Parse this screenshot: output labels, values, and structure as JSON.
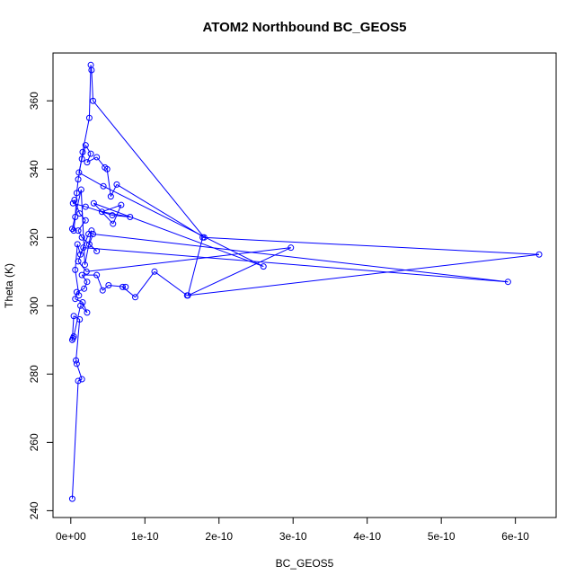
{
  "chart_data": {
    "type": "line",
    "title": "ATOM2 Northbound BC_GEOS5",
    "xlabel": "BC_GEOS5",
    "ylabel": "Theta (K)",
    "xlim": [
      -2.4e-11,
      6.55e-10
    ],
    "ylim": [
      238,
      374
    ],
    "x_ticks": [
      0,
      1e-10,
      2e-10,
      3e-10,
      4e-10,
      5e-10,
      6e-10
    ],
    "x_tick_labels": [
      "0e+00",
      "1e-10",
      "2e-10",
      "3e-10",
      "4e-10",
      "5e-10",
      "6e-10"
    ],
    "y_ticks": [
      240,
      260,
      280,
      300,
      320,
      340,
      360
    ],
    "y_tick_labels": [
      "240",
      "260",
      "280",
      "300",
      "320",
      "340",
      "360"
    ],
    "grid": false,
    "series": [
      {
        "color": "#0000ff",
        "marker": "open-circle",
        "points": [
          [
            2e-12,
            243.5
          ],
          [
            1e-11,
            278
          ],
          [
            1.5e-11,
            278.5
          ],
          [
            8e-12,
            283
          ],
          [
            7e-12,
            284
          ],
          [
            1.2e-11,
            296
          ],
          [
            4e-12,
            297
          ],
          [
            2e-12,
            290
          ],
          [
            3e-12,
            290.5
          ],
          [
            4e-12,
            291
          ],
          [
            1.3e-11,
            300
          ],
          [
            2.2e-11,
            298
          ],
          [
            1.6e-11,
            301
          ],
          [
            6e-12,
            302
          ],
          [
            8e-12,
            304
          ],
          [
            1.8e-11,
            305
          ],
          [
            2.2e-11,
            307
          ],
          [
            1.5e-11,
            309
          ],
          [
            3.5e-11,
            309
          ],
          [
            4.3e-11,
            304.5
          ],
          [
            5.1e-11,
            306
          ],
          [
            7.4e-11,
            305.5
          ],
          [
            7e-11,
            305.5
          ],
          [
            8.7e-11,
            302.5
          ],
          [
            1.13e-10,
            310
          ],
          [
            1.57e-10,
            303
          ],
          [
            6.32e-10,
            315
          ],
          [
            1.78e-10,
            320
          ],
          [
            1.58e-10,
            303
          ],
          [
            2.97e-10,
            317
          ],
          [
            2.13e-11,
            310
          ],
          [
            1e-11,
            313
          ],
          [
            1.7e-11,
            317
          ],
          [
            5.9e-10,
            307
          ],
          [
            3e-11,
            321
          ],
          [
            2.5e-11,
            318
          ],
          [
            3.5e-11,
            316
          ],
          [
            1.5e-11,
            320
          ],
          [
            1e-11,
            322
          ],
          [
            2e-11,
            325
          ],
          [
            1.2e-11,
            327
          ],
          [
            5e-12,
            331
          ],
          [
            3e-12,
            330
          ],
          [
            2e-11,
            329
          ],
          [
            5.6e-11,
            326.5
          ],
          [
            8e-11,
            326
          ],
          [
            4.2e-11,
            327.5
          ],
          [
            6.8e-11,
            329.5
          ],
          [
            5.7e-11,
            324
          ],
          [
            3.1e-11,
            330
          ],
          [
            2.6e-10,
            311.5
          ],
          [
            4.4e-11,
            335
          ],
          [
            1.1e-11,
            339
          ],
          [
            1.5e-11,
            343
          ],
          [
            2e-11,
            347
          ],
          [
            2.7e-11,
            344.5
          ],
          [
            2.2e-11,
            342
          ],
          [
            3.5e-11,
            343.5
          ],
          [
            4.6e-11,
            340.5
          ],
          [
            4.9e-11,
            340
          ],
          [
            5.4e-11,
            332
          ],
          [
            6.2e-11,
            335.5
          ],
          [
            1.8e-10,
            320
          ],
          [
            3e-11,
            360
          ],
          [
            2.8e-11,
            369
          ],
          [
            2.7e-11,
            370.5
          ],
          [
            2.5e-11,
            355
          ],
          [
            1.6e-11,
            345
          ],
          [
            1e-11,
            337
          ],
          [
            8e-12,
            333
          ],
          [
            6e-12,
            326
          ],
          [
            4e-12,
            322
          ],
          [
            2e-12,
            322.5
          ],
          [
            1.4e-11,
            334
          ],
          [
            1.9e-11,
            312
          ],
          [
            2.8e-11,
            322
          ],
          [
            2.4e-11,
            321
          ],
          [
            1.3e-11,
            315
          ],
          [
            9e-12,
            318
          ],
          [
            6e-12,
            310.5
          ],
          [
            1.1e-11,
            303
          ]
        ]
      }
    ]
  }
}
